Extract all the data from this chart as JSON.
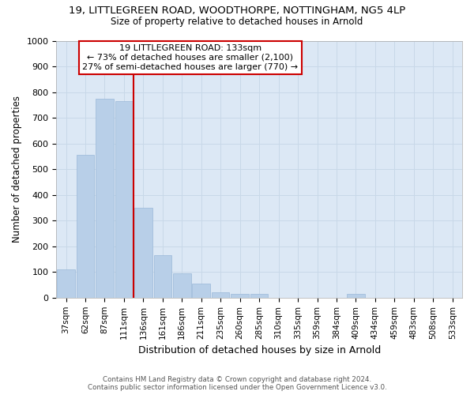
{
  "title_line1": "19, LITTLEGREEN ROAD, WOODTHORPE, NOTTINGHAM, NG5 4LP",
  "title_line2": "Size of property relative to detached houses in Arnold",
  "xlabel": "Distribution of detached houses by size in Arnold",
  "ylabel": "Number of detached properties",
  "categories": [
    "37sqm",
    "62sqm",
    "87sqm",
    "111sqm",
    "136sqm",
    "161sqm",
    "186sqm",
    "211sqm",
    "235sqm",
    "260sqm",
    "285sqm",
    "310sqm",
    "335sqm",
    "359sqm",
    "384sqm",
    "409sqm",
    "434sqm",
    "459sqm",
    "483sqm",
    "508sqm",
    "533sqm"
  ],
  "values": [
    110,
    555,
    775,
    765,
    350,
    165,
    95,
    55,
    20,
    15,
    15,
    0,
    0,
    0,
    0,
    15,
    0,
    0,
    0,
    0,
    0
  ],
  "bar_color": "#b8cfe8",
  "bar_edge_color": "#9ab8d8",
  "grid_color": "#c8d8e8",
  "bg_color": "#dce8f5",
  "property_line_color": "#cc0000",
  "property_label": "19 LITTLEGREEN ROAD: 133sqm",
  "annotation_line1": "← 73% of detached houses are smaller (2,100)",
  "annotation_line2": "27% of semi-detached houses are larger (770) →",
  "annotation_box_color": "#ffffff",
  "annotation_border_color": "#cc0000",
  "footer_line1": "Contains HM Land Registry data © Crown copyright and database right 2024.",
  "footer_line2": "Contains public sector information licensed under the Open Government Licence v3.0.",
  "ylim": [
    0,
    1000
  ],
  "yticks": [
    0,
    100,
    200,
    300,
    400,
    500,
    600,
    700,
    800,
    900,
    1000
  ],
  "figsize": [
    6.0,
    5.0
  ],
  "dpi": 100
}
